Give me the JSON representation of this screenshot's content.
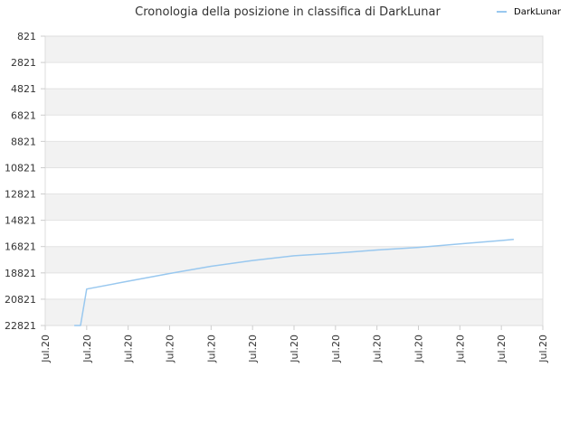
{
  "chart_data": {
    "type": "line",
    "title": "Cronologia della posizione in classifica di DarkLunar",
    "xlabel": "",
    "ylabel": "",
    "y_inverted": true,
    "ylim": [
      821,
      22821
    ],
    "y_ticks": [
      821,
      2821,
      4821,
      6821,
      8821,
      10821,
      12821,
      14821,
      16821,
      18821,
      20821,
      22821
    ],
    "x_tick_labels": [
      "Jul.20",
      "Jul.20",
      "Jul.20",
      "Jul.20",
      "Jul.20",
      "Jul.20",
      "Jul.20",
      "Jul.20",
      "Jul.20",
      "Jul.20",
      "Jul.20",
      "Jul.20",
      "Jul.20"
    ],
    "grid": "horizontal alternating bands",
    "legend_position": "top-right",
    "series": [
      {
        "name": "DarkLunar",
        "color": "#99c8ef",
        "x": [
          0.7,
          0.85,
          1.0,
          2.0,
          3.0,
          4.0,
          5.0,
          6.0,
          7.0,
          8.0,
          9.0,
          10.0,
          11.0,
          11.3
        ],
        "values": [
          22821,
          22821,
          20050,
          19450,
          18870,
          18320,
          17880,
          17520,
          17320,
          17080,
          16880,
          16620,
          16360,
          16270
        ]
      }
    ]
  }
}
